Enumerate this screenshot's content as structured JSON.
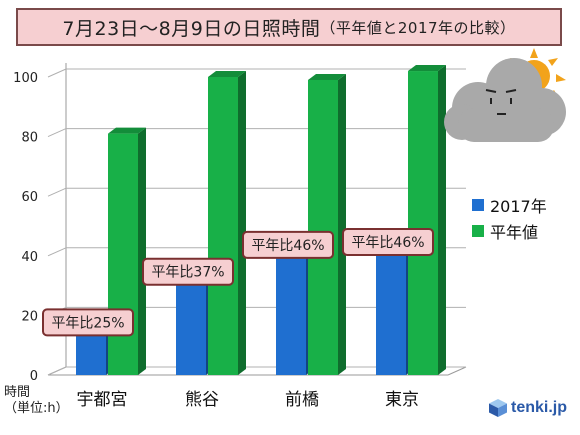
{
  "title": {
    "main": "7月23日～8月9日の日照時間",
    "paren": "（平年値と2017年の比較）"
  },
  "unit_label": {
    "line1": "時間",
    "line2": "（単位:h）"
  },
  "logo": {
    "text": "tenki.jp",
    "icon": "tenki-cube-icon"
  },
  "weather_icon": "cloudy-with-sun-icon",
  "colors": {
    "series_2017": "#1f6fd0",
    "series_normal": "#18b048",
    "ratio_box_fill": "#f6cfd1",
    "ratio_box_border": "#7a3030",
    "title_fill": "#f6cfd1"
  },
  "chart_data": {
    "type": "bar",
    "title": "7月23日～8月9日の日照時間（平年値と2017年の比較）",
    "xlabel": "",
    "ylabel": "時間（単位:h）",
    "ylim": [
      0,
      100
    ],
    "yticks": [
      0,
      20,
      40,
      60,
      80,
      100
    ],
    "categories": [
      "宇都宮",
      "熊谷",
      "前橋",
      "東京"
    ],
    "series": [
      {
        "name": "2017年",
        "values": [
          20,
          37,
          46,
          47
        ]
      },
      {
        "name": "平年値",
        "values": [
          81,
          100,
          99,
          102
        ]
      }
    ],
    "annotations": [
      "平年比25%",
      "平年比37%",
      "平年比46%",
      "平年比46%"
    ],
    "legend_position": "right",
    "grid": true
  }
}
